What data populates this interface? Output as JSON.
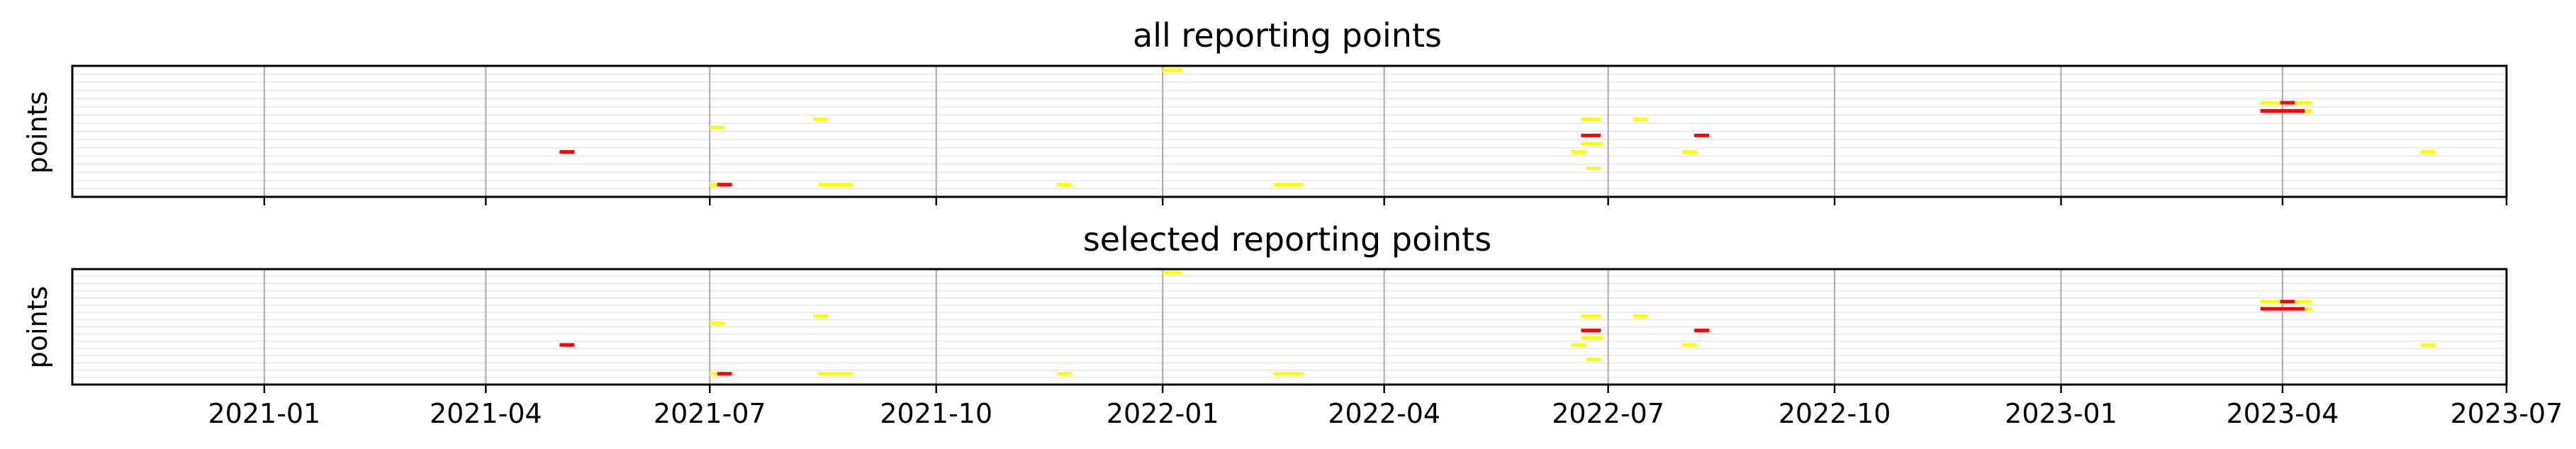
{
  "chart_data": [
    {
      "type": "timeline",
      "title": "all reporting points",
      "ylabel": "points",
      "xlim": [
        "2020-10-15",
        "2023-07-01"
      ],
      "rows": 16,
      "grid": {
        "x": true,
        "y": true
      },
      "colors": {
        "warning": "#ffff00",
        "alarm": "#ff0000"
      },
      "series": [
        {
          "start": "2022-01-01",
          "end": "2022-01-09",
          "row": 15,
          "level": "warning"
        },
        {
          "start": "2023-03-23",
          "end": "2023-04-13",
          "row": 11,
          "level": "warning"
        },
        {
          "start": "2023-03-31",
          "end": "2023-04-06",
          "row": 11,
          "level": "alarm"
        },
        {
          "start": "2023-03-23",
          "end": "2023-04-13",
          "row": 10,
          "level": "warning"
        },
        {
          "start": "2023-03-23",
          "end": "2023-04-10",
          "row": 10,
          "level": "alarm"
        },
        {
          "start": "2021-08-12",
          "end": "2021-08-18",
          "row": 9,
          "level": "warning"
        },
        {
          "start": "2022-06-20",
          "end": "2022-06-28",
          "row": 9,
          "level": "warning"
        },
        {
          "start": "2022-07-11",
          "end": "2022-07-17",
          "row": 9,
          "level": "warning"
        },
        {
          "start": "2021-07-01",
          "end": "2021-07-07",
          "row": 8,
          "level": "warning"
        },
        {
          "start": "2022-06-20",
          "end": "2022-06-28",
          "row": 7,
          "level": "alarm"
        },
        {
          "start": "2022-08-05",
          "end": "2022-08-11",
          "row": 7,
          "level": "alarm"
        },
        {
          "start": "2022-06-20",
          "end": "2022-06-29",
          "row": 6,
          "level": "warning"
        },
        {
          "start": "2021-05-01",
          "end": "2021-05-07",
          "row": 5,
          "level": "alarm"
        },
        {
          "start": "2022-06-16",
          "end": "2022-06-22",
          "row": 5,
          "level": "warning"
        },
        {
          "start": "2022-07-31",
          "end": "2022-08-06",
          "row": 5,
          "level": "warning"
        },
        {
          "start": "2023-05-27",
          "end": "2023-06-02",
          "row": 5,
          "level": "warning"
        },
        {
          "start": "2022-06-22",
          "end": "2022-06-28",
          "row": 3,
          "level": "warning"
        },
        {
          "start": "2021-07-01",
          "end": "2021-07-08",
          "row": 1,
          "level": "warning"
        },
        {
          "start": "2021-07-04",
          "end": "2021-07-10",
          "row": 1,
          "level": "alarm"
        },
        {
          "start": "2021-08-14",
          "end": "2021-08-28",
          "row": 1,
          "level": "warning"
        },
        {
          "start": "2021-11-19",
          "end": "2021-11-25",
          "row": 1,
          "level": "warning"
        },
        {
          "start": "2022-02-15",
          "end": "2022-02-27",
          "row": 1,
          "level": "warning"
        }
      ]
    },
    {
      "type": "timeline",
      "title": "selected reporting points",
      "ylabel": "points",
      "xlim": [
        "2020-10-15",
        "2023-07-01"
      ],
      "rows": 16,
      "grid": {
        "x": true,
        "y": true
      },
      "colors": {
        "warning": "#ffff00",
        "alarm": "#ff0000"
      },
      "xticks": [
        "2021-01",
        "2021-04",
        "2021-07",
        "2021-10",
        "2022-01",
        "2022-04",
        "2022-07",
        "2022-10",
        "2023-01",
        "2023-04",
        "2023-07"
      ],
      "series": [
        {
          "start": "2022-01-01",
          "end": "2022-01-09",
          "row": 15,
          "level": "warning"
        },
        {
          "start": "2023-03-23",
          "end": "2023-04-13",
          "row": 11,
          "level": "warning"
        },
        {
          "start": "2023-03-31",
          "end": "2023-04-06",
          "row": 11,
          "level": "alarm"
        },
        {
          "start": "2023-03-23",
          "end": "2023-04-13",
          "row": 10,
          "level": "warning"
        },
        {
          "start": "2023-03-23",
          "end": "2023-04-10",
          "row": 10,
          "level": "alarm"
        },
        {
          "start": "2021-08-12",
          "end": "2021-08-18",
          "row": 9,
          "level": "warning"
        },
        {
          "start": "2022-06-20",
          "end": "2022-06-28",
          "row": 9,
          "level": "warning"
        },
        {
          "start": "2022-07-11",
          "end": "2022-07-17",
          "row": 9,
          "level": "warning"
        },
        {
          "start": "2021-07-01",
          "end": "2021-07-07",
          "row": 8,
          "level": "warning"
        },
        {
          "start": "2022-06-20",
          "end": "2022-06-28",
          "row": 7,
          "level": "alarm"
        },
        {
          "start": "2022-08-05",
          "end": "2022-08-11",
          "row": 7,
          "level": "alarm"
        },
        {
          "start": "2022-06-20",
          "end": "2022-06-29",
          "row": 6,
          "level": "warning"
        },
        {
          "start": "2021-05-01",
          "end": "2021-05-07",
          "row": 5,
          "level": "alarm"
        },
        {
          "start": "2022-06-16",
          "end": "2022-06-22",
          "row": 5,
          "level": "warning"
        },
        {
          "start": "2022-07-31",
          "end": "2022-08-06",
          "row": 5,
          "level": "warning"
        },
        {
          "start": "2023-05-27",
          "end": "2023-06-02",
          "row": 5,
          "level": "warning"
        },
        {
          "start": "2022-06-22",
          "end": "2022-06-28",
          "row": 3,
          "level": "warning"
        },
        {
          "start": "2021-07-01",
          "end": "2021-07-08",
          "row": 1,
          "level": "warning"
        },
        {
          "start": "2021-07-04",
          "end": "2021-07-10",
          "row": 1,
          "level": "alarm"
        },
        {
          "start": "2021-08-14",
          "end": "2021-08-28",
          "row": 1,
          "level": "warning"
        },
        {
          "start": "2021-11-19",
          "end": "2021-11-25",
          "row": 1,
          "level": "warning"
        },
        {
          "start": "2022-02-15",
          "end": "2022-02-27",
          "row": 1,
          "level": "warning"
        }
      ]
    }
  ]
}
